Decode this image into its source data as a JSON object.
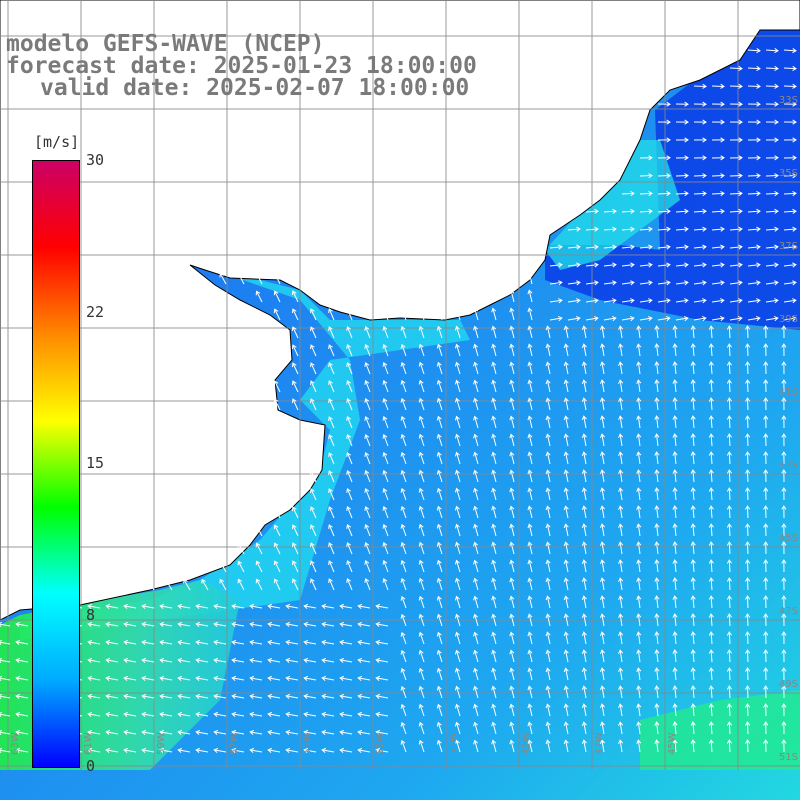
{
  "title": {
    "model": "modelo GEFS-WAVE (NCEP)",
    "forecast": "forecast date: 2025-01-23 18:00:00",
    "valid": "valid date: 2025-02-07 18:00:00"
  },
  "colorbar": {
    "units": "[m/s]",
    "min": 0,
    "max": 30,
    "ticks": [
      "30",
      "22",
      "15",
      "8",
      "0"
    ],
    "tick_values": [
      30,
      22.5,
      15,
      7.5,
      0
    ],
    "colors": [
      "#0000ff",
      "#00aaff",
      "#00ffff",
      "#00ff00",
      "#ffff00",
      "#ff8800",
      "#ff0000",
      "#cc0066"
    ]
  },
  "map_labels": {
    "lon": [
      "63W",
      "61W",
      "59W",
      "57W",
      "55W",
      "53W",
      "51W",
      "49W",
      "47W",
      "45W"
    ],
    "lat": [
      "33S",
      "35S",
      "37S",
      "39S",
      "41S",
      "43S",
      "45S",
      "47S",
      "49S",
      "51S"
    ]
  },
  "land_color": "#ffffff",
  "arrow_color": "#ffffff"
}
